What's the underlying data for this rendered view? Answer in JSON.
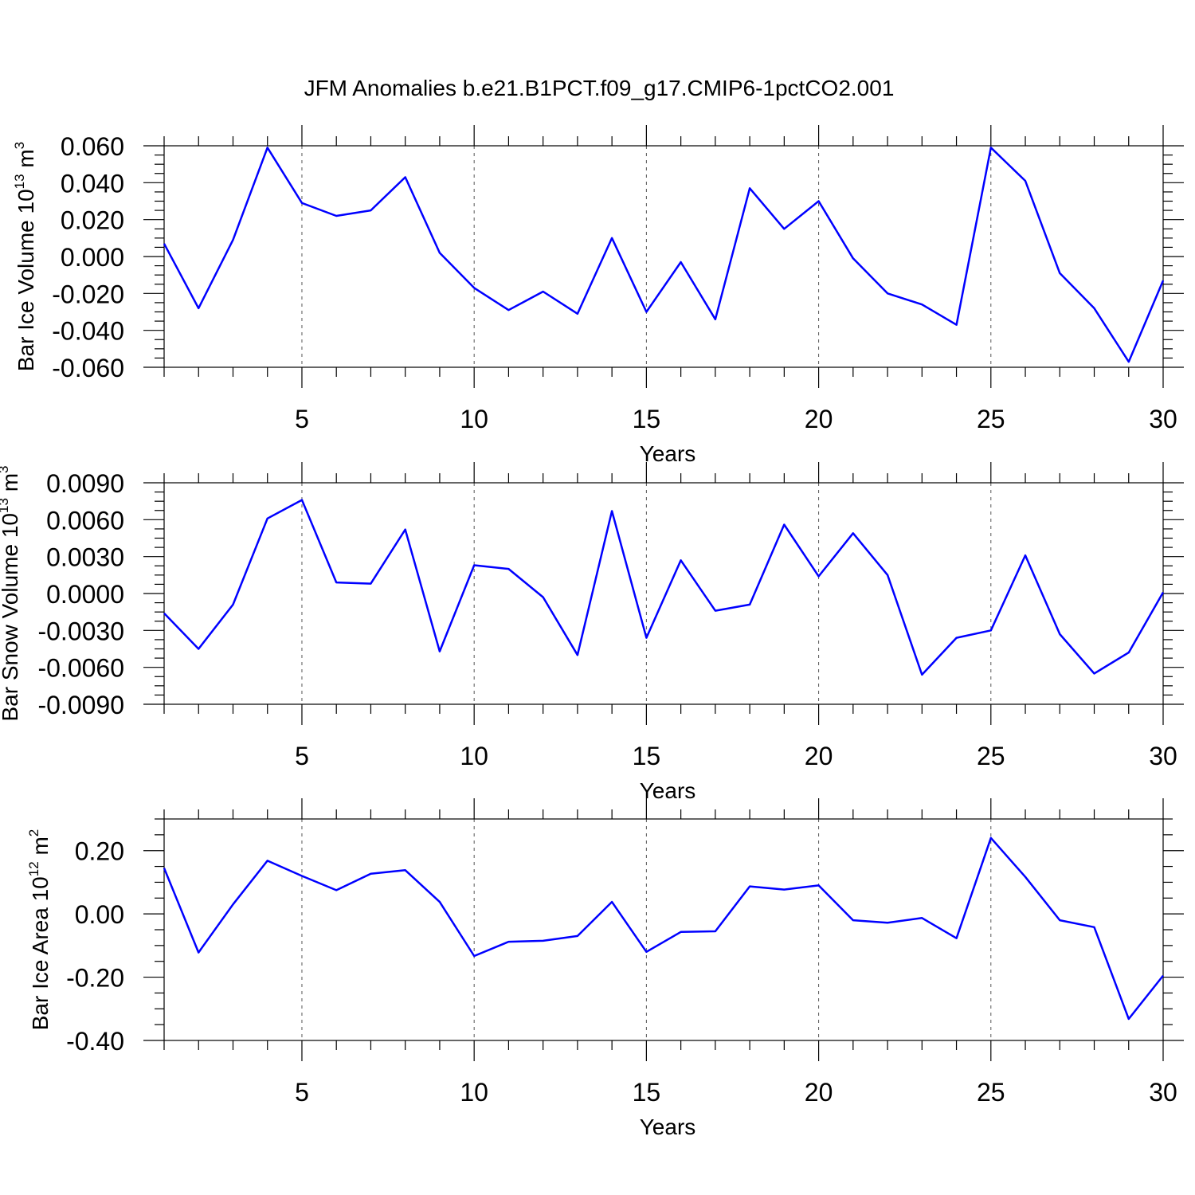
{
  "title": "JFM Anomalies b.e21.B1PCT.f09_g17.CMIP6-1pctCO2.001",
  "colors": {
    "line": "#0000ff",
    "frame": "#000000"
  },
  "chart_data": [
    {
      "type": "line",
      "xlabel": "Years",
      "ylabel": {
        "text": "Bar Ice Volume 10",
        "sup": "13",
        "unit": " m",
        "unit_sup": "3"
      },
      "xlim": [
        1,
        30
      ],
      "ylim": [
        -0.06,
        0.06
      ],
      "xticks": [
        5,
        10,
        15,
        20,
        25,
        30
      ],
      "xtick_labels": [
        "5",
        "10",
        "15",
        "20",
        "25",
        "30"
      ],
      "yticks": [
        0.06,
        0.04,
        0.02,
        0.0,
        -0.02,
        -0.04,
        -0.06
      ],
      "ytick_labels": [
        "0.060",
        "0.040",
        "0.020",
        "0.000",
        "-0.020",
        "-0.040",
        "-0.060"
      ],
      "grid": "vertical-dashed",
      "series": [
        {
          "x": [
            1,
            2,
            3,
            4,
            5,
            6,
            7,
            8,
            9,
            10,
            11,
            12,
            13,
            14,
            15,
            16,
            17,
            18,
            19,
            20,
            21,
            22,
            23,
            24,
            25,
            26,
            27,
            28,
            29,
            30
          ],
          "values": [
            0.007,
            -0.028,
            0.009,
            0.059,
            0.029,
            0.022,
            0.025,
            0.043,
            0.002,
            -0.017,
            -0.029,
            -0.019,
            -0.031,
            0.01,
            -0.03,
            -0.003,
            -0.034,
            0.037,
            0.015,
            0.03,
            -0.001,
            -0.02,
            -0.026,
            -0.037,
            0.059,
            0.041,
            -0.009,
            -0.028,
            -0.057,
            -0.013
          ]
        }
      ]
    },
    {
      "type": "line",
      "xlabel": "Years",
      "ylabel": {
        "text": "Bar Snow Volume 10",
        "sup": "13",
        "unit": " m",
        "unit_sup": "3"
      },
      "xlim": [
        1,
        30
      ],
      "ylim": [
        -0.009,
        0.009
      ],
      "xticks": [
        5,
        10,
        15,
        20,
        25,
        30
      ],
      "xtick_labels": [
        "5",
        "10",
        "15",
        "20",
        "25",
        "30"
      ],
      "yticks": [
        0.009,
        0.006,
        0.003,
        0.0,
        -0.003,
        -0.006,
        -0.009
      ],
      "ytick_labels": [
        "0.0090",
        "0.0060",
        "0.0030",
        "0.0000",
        "-0.0030",
        "-0.0060",
        "-0.0090"
      ],
      "grid": "vertical-dashed",
      "series": [
        {
          "x": [
            1,
            2,
            3,
            4,
            5,
            6,
            7,
            8,
            9,
            10,
            11,
            12,
            13,
            14,
            15,
            16,
            17,
            18,
            19,
            20,
            21,
            22,
            23,
            24,
            25,
            26,
            27,
            28,
            29,
            30
          ],
          "values": [
            -0.0016,
            -0.0045,
            -0.0009,
            0.0061,
            0.0076,
            0.0009,
            0.0008,
            0.0052,
            -0.0047,
            0.0023,
            0.002,
            -0.0003,
            -0.005,
            0.0067,
            -0.0036,
            0.0027,
            -0.0014,
            -0.0009,
            0.0056,
            0.0014,
            0.0049,
            0.0015,
            -0.0066,
            -0.0036,
            -0.003,
            0.0031,
            -0.0033,
            -0.0065,
            -0.0048,
            0.0001
          ]
        }
      ]
    },
    {
      "type": "line",
      "xlabel": "Years",
      "ylabel": {
        "text": "Bar Ice Area 10",
        "sup": "12",
        "unit": " m",
        "unit_sup": "2"
      },
      "xlim": [
        1,
        30
      ],
      "ylim": [
        -0.4,
        0.3
      ],
      "xticks": [
        5,
        10,
        15,
        20,
        25,
        30
      ],
      "xtick_labels": [
        "5",
        "10",
        "15",
        "20",
        "25",
        "30"
      ],
      "yticks": [
        0.2,
        0.0,
        -0.2,
        -0.4
      ],
      "ytick_labels": [
        "0.20",
        "0.00",
        "-0.20",
        "-0.40"
      ],
      "grid": "vertical-dashed",
      "series": [
        {
          "x": [
            1,
            2,
            3,
            4,
            5,
            6,
            7,
            8,
            9,
            10,
            11,
            12,
            13,
            14,
            15,
            16,
            17,
            18,
            19,
            20,
            21,
            22,
            23,
            24,
            25,
            26,
            27,
            28,
            29,
            30
          ],
          "values": [
            0.145,
            -0.122,
            0.03,
            0.168,
            0.12,
            0.075,
            0.127,
            0.138,
            0.038,
            -0.133,
            -0.088,
            -0.085,
            -0.07,
            0.038,
            -0.12,
            -0.057,
            -0.055,
            0.087,
            0.077,
            0.09,
            -0.02,
            -0.028,
            -0.013,
            -0.077,
            0.24,
            0.117,
            -0.02,
            -0.042,
            -0.332,
            -0.195
          ]
        }
      ]
    }
  ]
}
